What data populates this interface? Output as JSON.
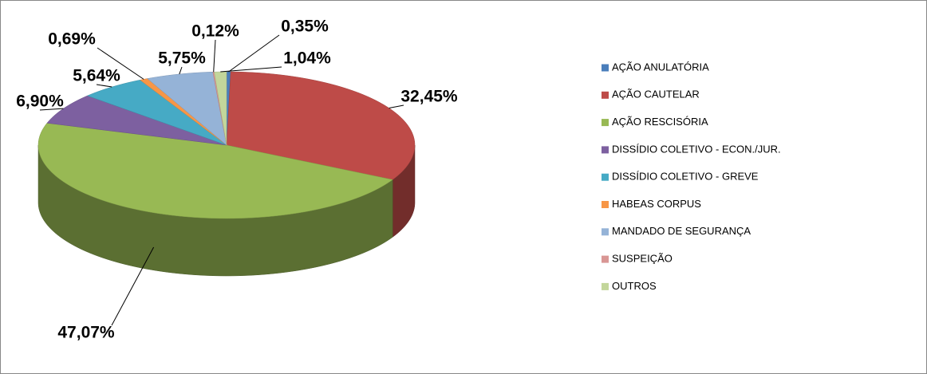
{
  "chart_data": {
    "type": "pie",
    "categories": [
      "AÇÃO ANULATÓRIA",
      "AÇÃO CAUTELAR",
      "AÇÃO RESCISÓRIA",
      "DISSÍDIO COLETIVO - ECON./JUR.",
      "DISSÍDIO COLETIVO - GREVE",
      "HABEAS CORPUS",
      "MANDADO DE SEGURANÇA",
      "SUSPEIÇÃO",
      "OUTROS"
    ],
    "values": [
      0.35,
      32.45,
      47.07,
      6.9,
      5.64,
      0.69,
      5.75,
      0.12,
      1.04
    ],
    "value_labels": [
      "0,35%",
      "32,45%",
      "47,07%",
      "6,90%",
      "5,64%",
      "0,69%",
      "5,75%",
      "0,12%",
      "1,04%"
    ],
    "colors": [
      "#4a7ebb",
      "#be4b48",
      "#98b954",
      "#7d60a0",
      "#46aac5",
      "#f79646",
      "#95b3d7",
      "#d99694",
      "#c3d69b"
    ],
    "legend": "right"
  }
}
